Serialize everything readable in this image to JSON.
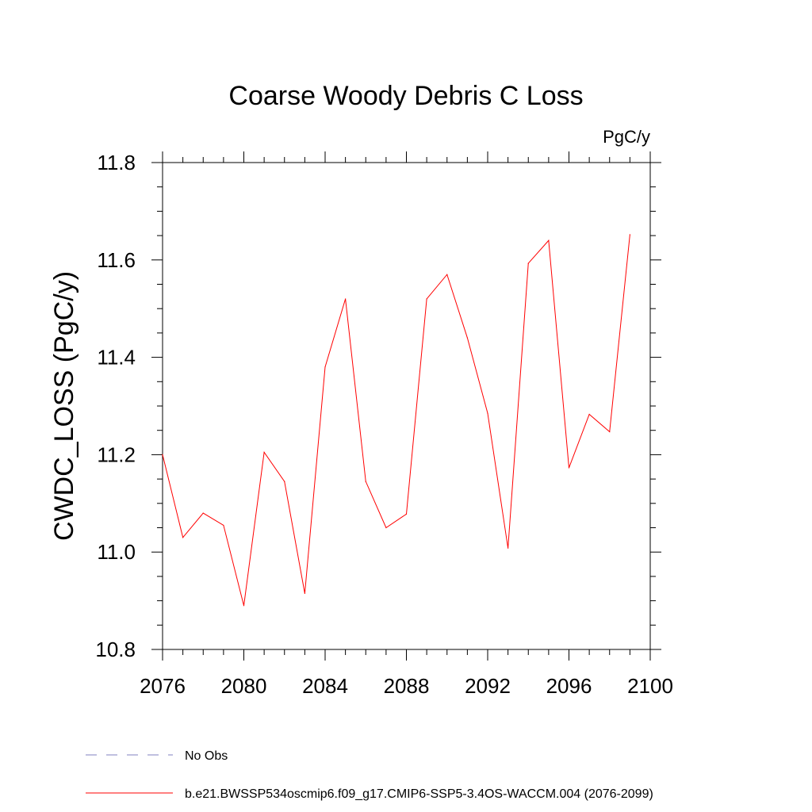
{
  "chart_data": {
    "type": "line",
    "title": "Coarse Woody Debris C Loss",
    "units_label": "PgC/y",
    "xlabel": "",
    "ylabel": "CWDC_LOSS  (PgC/y)",
    "xlim": [
      2076,
      2100
    ],
    "ylim": [
      10.8,
      11.8
    ],
    "x_ticks": [
      "2076",
      "2080",
      "2084",
      "2088",
      "2092",
      "2096",
      "2100"
    ],
    "y_ticks": [
      "10.8",
      "11.0",
      "11.2",
      "11.4",
      "11.6",
      "11.8"
    ],
    "grid": false,
    "series": [
      {
        "name": "b.e21.BWSSP534oscmip6.f09_g17.CMIP6-SSP5-3.4OS-WACCM.004 (2076-2099)",
        "color": "#ff0000",
        "style": "solid",
        "x": [
          2076,
          2077,
          2078,
          2079,
          2080,
          2081,
          2082,
          2083,
          2084,
          2085,
          2086,
          2087,
          2088,
          2089,
          2090,
          2091,
          2092,
          2093,
          2094,
          2095,
          2096,
          2097,
          2098,
          2099
        ],
        "values": [
          11.2,
          11.03,
          11.08,
          11.055,
          10.89,
          11.205,
          11.145,
          10.915,
          11.38,
          11.52,
          11.145,
          11.05,
          11.078,
          11.52,
          11.57,
          11.44,
          11.285,
          11.008,
          11.593,
          11.64,
          11.173,
          11.283,
          11.247,
          11.652
        ]
      }
    ],
    "legend": {
      "position": "bottom-left",
      "entries": [
        {
          "label": "No Obs",
          "color": "#8080c0",
          "style": "dashed"
        },
        {
          "label": "b.e21.BWSSP534oscmip6.f09_g17.CMIP6-SSP5-3.4OS-WACCM.004 (2076-2099)",
          "color": "#ff0000",
          "style": "solid"
        }
      ]
    }
  }
}
